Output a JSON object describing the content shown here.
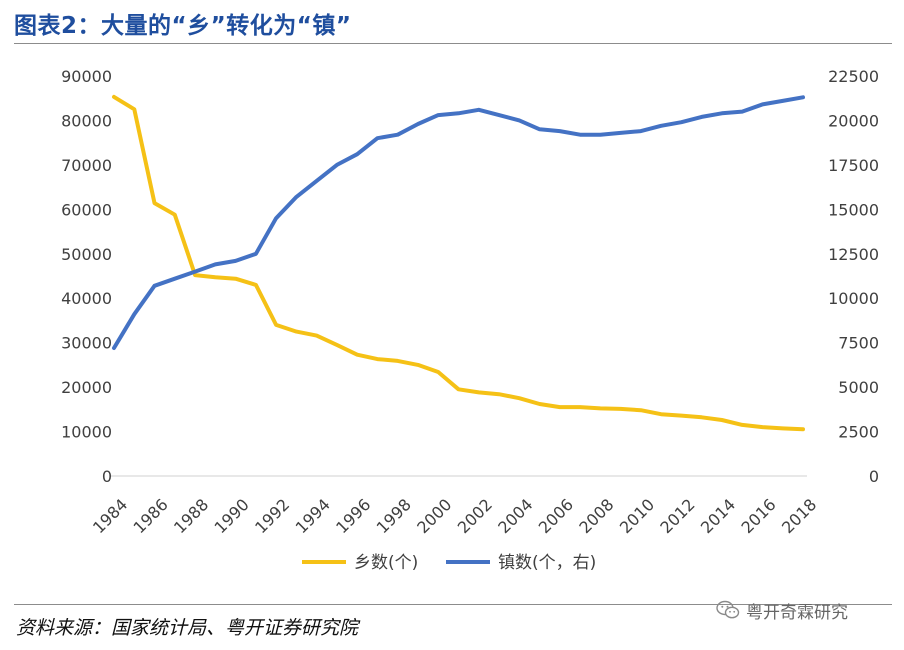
{
  "header": {
    "title": "图表2：大量的“乡”转化为“镇”"
  },
  "footer": {
    "source": "资料来源：国家统计局、粤开证券研究院",
    "watermark": "粤开奇霖研究",
    "watermark_icon": "wechat-icon"
  },
  "colors": {
    "title": "#1f4e9e",
    "series_xiang": "#f5c116",
    "series_zhen": "#4472c4"
  },
  "chart_data": {
    "type": "line",
    "title": "",
    "x": [
      1984,
      1985,
      1986,
      1987,
      1988,
      1989,
      1990,
      1991,
      1992,
      1993,
      1994,
      1995,
      1996,
      1997,
      1998,
      1999,
      2000,
      2001,
      2002,
      2003,
      2004,
      2005,
      2006,
      2007,
      2008,
      2009,
      2010,
      2011,
      2012,
      2013,
      2014,
      2015,
      2016,
      2017,
      2018
    ],
    "x_tick_labels": [
      "1984",
      "1986",
      "1988",
      "1990",
      "1992",
      "1994",
      "1996",
      "1998",
      "2000",
      "2002",
      "2004",
      "2006",
      "2008",
      "2010",
      "2012",
      "2014",
      "2016",
      "2018"
    ],
    "y_left_ticks": [
      "0",
      "10000",
      "20000",
      "30000",
      "40000",
      "50000",
      "60000",
      "70000",
      "80000",
      "90000"
    ],
    "y_right_ticks": [
      "0",
      "2500",
      "5000",
      "7500",
      "10000",
      "12500",
      "15000",
      "17500",
      "20000",
      "22500"
    ],
    "ylim_left": [
      0,
      90000
    ],
    "ylim_right": [
      0,
      22500
    ],
    "grid": false,
    "legend_position": "bottom",
    "series": [
      {
        "name": "乡数(个)",
        "axis": "left",
        "values": [
          85300,
          82500,
          61400,
          58800,
          45200,
          44700,
          44400,
          43000,
          34000,
          32500,
          31600,
          29500,
          27300,
          26300,
          25900,
          25000,
          23400,
          19500,
          18800,
          18400,
          17500,
          16200,
          15500,
          15500,
          15200,
          15100,
          14800,
          13900,
          13600,
          13200,
          12600,
          11500,
          11000,
          10700,
          10500
        ]
      },
      {
        "name": "镇数(个，右)",
        "axis": "right",
        "values": [
          7200,
          9100,
          10700,
          11100,
          11500,
          11900,
          12100,
          12500,
          14500,
          15700,
          16600,
          17500,
          18100,
          19000,
          19200,
          19800,
          20300,
          20400,
          20600,
          20300,
          20000,
          19500,
          19400,
          19200,
          19200,
          19300,
          19400,
          19700,
          19900,
          20200,
          20400,
          20500,
          20900,
          21100,
          21300
        ]
      }
    ]
  }
}
